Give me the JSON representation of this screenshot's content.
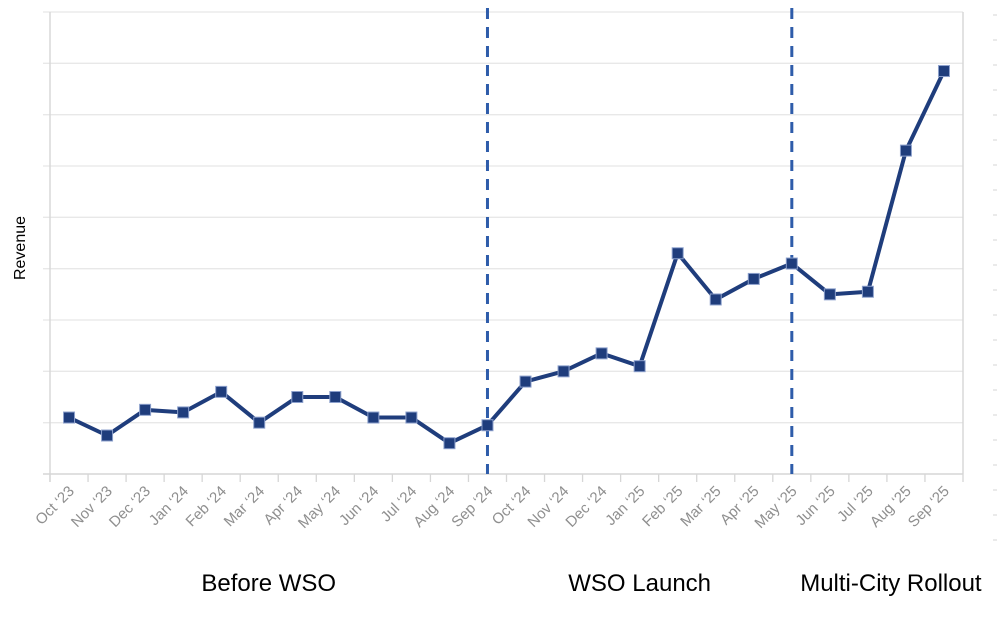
{
  "chart": {
    "y_axis_label": "Revenue",
    "x_tick_label_color": "#8f8f8f",
    "phase_label_color": "#000000"
  },
  "chart_data": {
    "type": "line",
    "title": "",
    "xlabel": "",
    "ylabel": "Revenue",
    "x": [
      "Oct ‘23",
      "Nov ‘23",
      "Dec ‘23",
      "Jan ‘24",
      "Feb ‘24",
      "Mar ‘24",
      "Apr ‘24",
      "May ‘24",
      "Jun ‘24",
      "Jul ‘24",
      "Aug ‘24",
      "Sep ‘24",
      "Oct ‘24",
      "Nov ‘24",
      "Dec ‘24",
      "Jan ‘25",
      "Feb ‘25",
      "Mar ‘25",
      "Apr ‘25",
      "May ‘25",
      "Jun ‘25",
      "Jul ‘25",
      "Aug ‘25",
      "Sep ‘25"
    ],
    "series": [
      {
        "name": "Revenue",
        "marker": "square",
        "color": "#1f3d7c",
        "values": [
          11,
          7.5,
          12.5,
          12,
          16,
          10,
          15,
          15,
          11,
          11,
          6,
          9.5,
          18,
          20,
          23.5,
          21,
          43,
          34,
          38,
          41,
          35,
          35.5,
          63,
          78.5
        ]
      }
    ],
    "ylim": [
      0,
      90
    ],
    "grid_step": 10,
    "grid": "horizontal",
    "y_tick_labels": "none",
    "legend": "none",
    "vlines": [
      {
        "at": "Sep ‘24",
        "style": "dashed",
        "color": "#2e5caa"
      },
      {
        "at": "May ‘25",
        "style": "dashed",
        "color": "#2e5caa"
      }
    ],
    "phase_annotations": [
      {
        "label": "Before WSO",
        "range": [
          "Oct ‘23",
          "Sep ‘24"
        ]
      },
      {
        "label": "WSO Launch",
        "range": [
          "Sep ‘24",
          "May ‘25"
        ]
      },
      {
        "label": "Multi-City Rollout",
        "range": [
          "May ‘25",
          "Sep ‘25"
        ]
      }
    ],
    "colors": {
      "series": "#1f3d7c",
      "marker_edge": "#8ca0cc",
      "vline": "#2e5caa",
      "gridline": "#e8e8e8",
      "axis": "#d6d6d6",
      "x_tick_label": "#8f8f8f",
      "text": "#000000",
      "background": "#ffffff"
    }
  }
}
